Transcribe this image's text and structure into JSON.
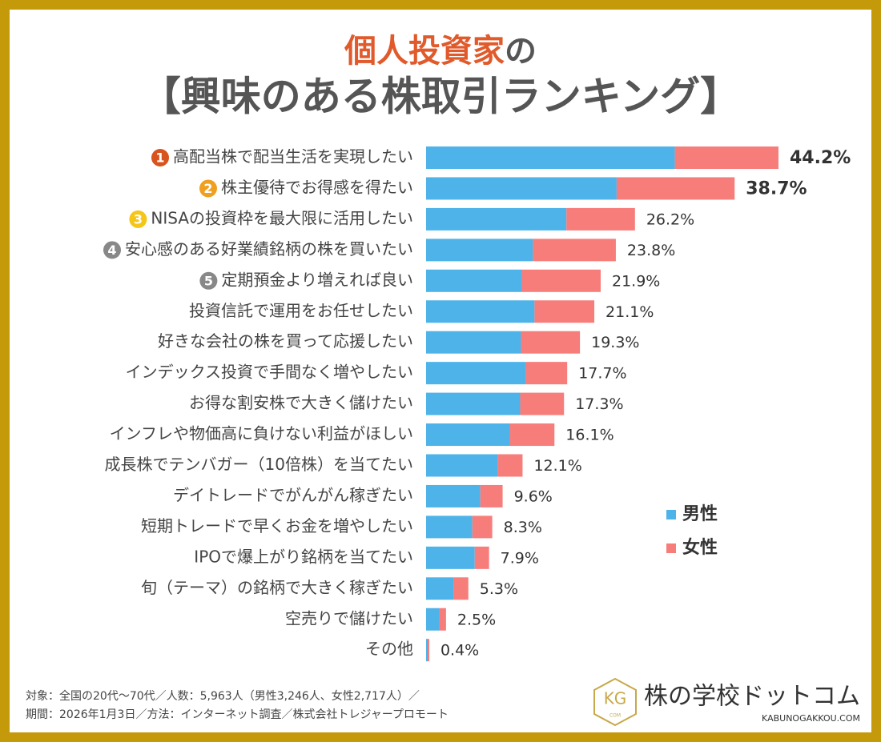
{
  "chart_data": {
    "type": "stacked-barh",
    "title_parts": [
      {
        "text": "個人投資家",
        "color": "#e05a2b"
      },
      {
        "text": "の",
        "color": "#555555"
      }
    ],
    "subtitle": "【興味のある株取引ランキング】",
    "categories": [
      "高配当株で配当生活を実現したい",
      "株主優待でお得感を得たい",
      "NISAの投資枠を最大限に活用したい",
      "安心感のある好業績銘柄の株を買いたい",
      "定期預金より増えれば良い",
      "投資信託で運用をお任せしたい",
      "好きな会社の株を買って応援したい",
      "インデックス投資で手間なく増やしたい",
      "お得な割安株で大きく儲けたい",
      "インフレや物価高に負けない利益がほしい",
      "成長株でテンバガー（10倍株）を当てたい",
      "デイトレードでがんがん稼ぎたい",
      "短期トレードで早くお金を増やしたい",
      "IPOで爆上がり銘柄を当てたい",
      "旬（テーマ）の銘柄で大きく稼ぎたい",
      "空売りで儲けたい",
      "その他"
    ],
    "rank_badges": [
      {
        "label": "1",
        "color": "#d9531e"
      },
      {
        "label": "2",
        "color": "#f0a020"
      },
      {
        "label": "3",
        "color": "#f5c518"
      },
      {
        "label": "4",
        "color": "#888888"
      },
      {
        "label": "5",
        "color": "#888888"
      }
    ],
    "series": [
      {
        "name": "男性",
        "color": "#4db3e9",
        "values": [
          31.2,
          23.9,
          17.6,
          13.4,
          12.0,
          13.6,
          11.9,
          12.5,
          11.8,
          10.5,
          9.0,
          6.8,
          5.8,
          6.1,
          3.5,
          1.7,
          0.2
        ]
      },
      {
        "name": "女性",
        "color": "#f77d7b",
        "values": [
          13.0,
          14.8,
          8.6,
          10.4,
          9.9,
          7.5,
          7.4,
          5.2,
          5.5,
          5.6,
          3.1,
          2.8,
          2.5,
          1.8,
          1.8,
          0.8,
          0.2
        ]
      }
    ],
    "totals": {
      "values": [
        44.2,
        38.7,
        26.2,
        23.8,
        21.9,
        21.1,
        19.3,
        17.7,
        17.3,
        16.1,
        12.1,
        9.6,
        8.3,
        7.9,
        5.3,
        2.5,
        0.4
      ],
      "value_labels": [
        "44.2%",
        "38.7%",
        "26.2%",
        "23.8%",
        "21.9%",
        "21.1%",
        "19.3%",
        "17.7%",
        "17.3%",
        "16.1%",
        "12.1%",
        "9.6%",
        "8.3%",
        "7.9%",
        "5.3%",
        "2.5%",
        "0.4%"
      ]
    },
    "xlim": [
      0,
      44.2
    ],
    "footnote": [
      "対象：全国の20代〜70代／人数：5,963人（男性3,246人、女性2,717人）／",
      "期間：2026年1月3日／方法：インターネット調査／株式会社トレジャープロモート"
    ],
    "logo": {
      "emblem": "KG",
      "emblem_sub": "COM",
      "name": "株の学校ドットコム",
      "url": "KABUNOGAKKOU.COM"
    }
  }
}
